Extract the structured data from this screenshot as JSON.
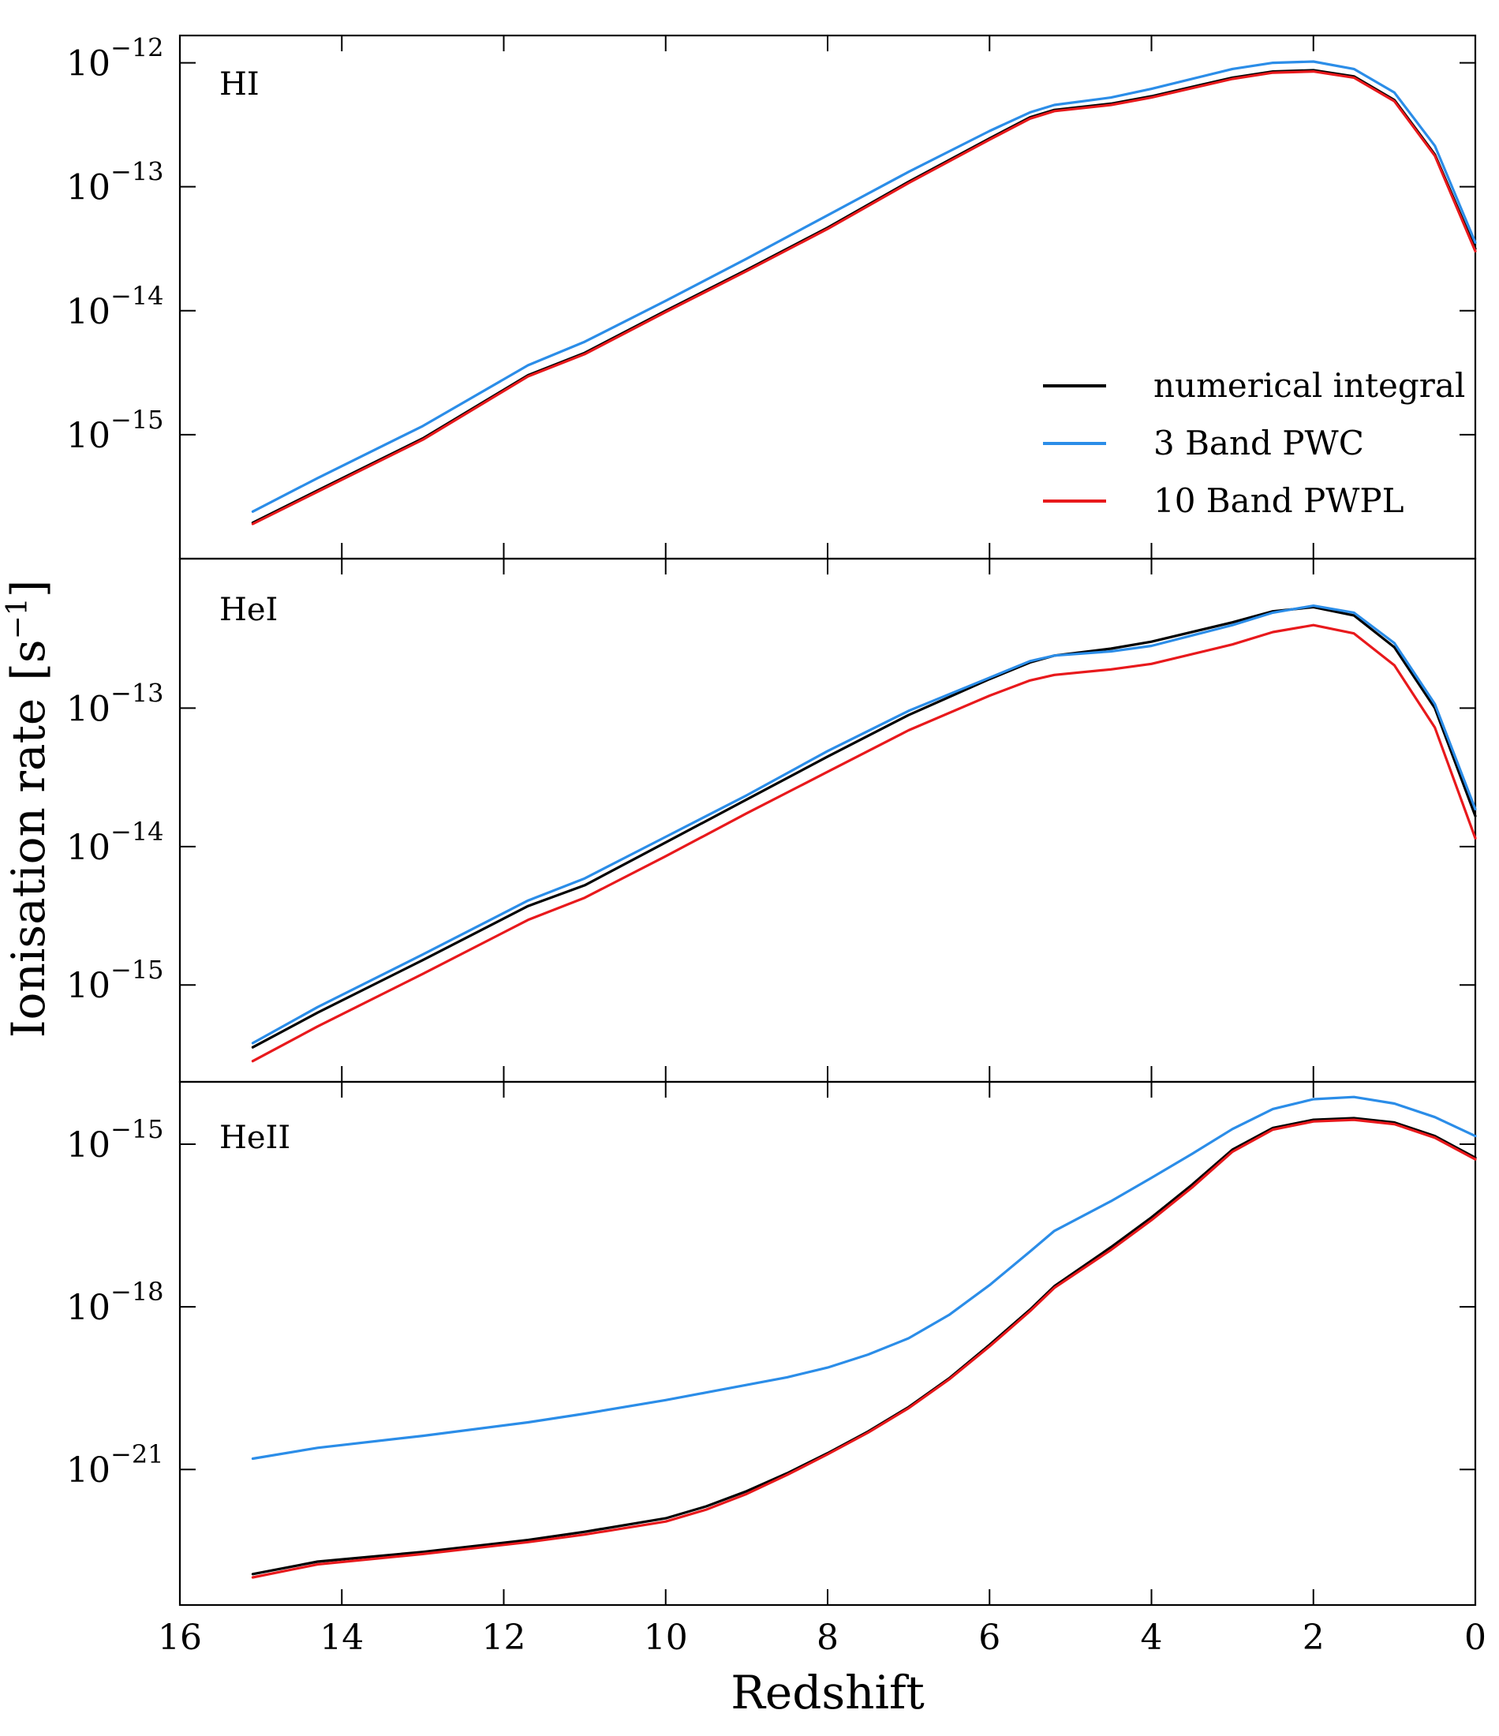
{
  "chart_data": {
    "type": "line",
    "xlabel": "Redshift",
    "ylabel_main": "Ionisation rate",
    "ylabel_unit_base": "[s",
    "ylabel_unit_exp": "−1",
    "ylabel_unit_close": "]",
    "xlim": [
      16,
      0
    ],
    "x_ticks": [
      16,
      14,
      12,
      10,
      8,
      6,
      4,
      2,
      0
    ],
    "x_tick_labels": [
      "16",
      "14",
      "12",
      "10",
      "8",
      "6",
      "4",
      "2",
      "0"
    ],
    "legend": {
      "placement": "lower-right of top panel",
      "entries": [
        {
          "label": "numerical integral",
          "color": "#000000"
        },
        {
          "label": "3 Band PWC",
          "color": "#2b8de8"
        },
        {
          "label": "10 Band PWPL",
          "color": "#e8191c"
        }
      ]
    },
    "panels": [
      {
        "label": "HI",
        "yscale": "log",
        "ylim_log10": [
          -16.0,
          -11.78
        ],
        "y_ticks_log10": [
          -12,
          -13,
          -14,
          -15
        ],
        "y_tick_base": "10",
        "y_tick_exponents": [
          "−12",
          "−13",
          "−14",
          "−15"
        ],
        "x": [
          15.1,
          14.3,
          13,
          11.7,
          11,
          10,
          9,
          8,
          7,
          6,
          5.5,
          5.2,
          4.5,
          4,
          3,
          2.5,
          2,
          1.5,
          1,
          0.5,
          0
        ],
        "series": [
          {
            "name": "numerical integral",
            "color": "#000000",
            "log10_values": [
              -15.71,
              -15.45,
              -15.03,
              -14.52,
              -14.34,
              -14.0,
              -13.67,
              -13.33,
              -12.96,
              -12.61,
              -12.44,
              -12.38,
              -12.33,
              -12.27,
              -12.12,
              -12.07,
              -12.06,
              -12.11,
              -12.3,
              -12.74,
              -13.5
            ]
          },
          {
            "name": "3 Band PWC",
            "color": "#2b8de8",
            "log10_values": [
              -15.62,
              -15.35,
              -14.93,
              -14.44,
              -14.25,
              -13.92,
              -13.58,
              -13.23,
              -12.88,
              -12.55,
              -12.4,
              -12.34,
              -12.28,
              -12.21,
              -12.05,
              -12.0,
              -11.99,
              -12.05,
              -12.24,
              -12.67,
              -13.45
            ]
          },
          {
            "name": "10 Band PWPL",
            "color": "#e8191c",
            "log10_values": [
              -15.72,
              -15.46,
              -15.04,
              -14.53,
              -14.35,
              -14.01,
              -13.68,
              -13.34,
              -12.97,
              -12.62,
              -12.45,
              -12.39,
              -12.34,
              -12.28,
              -12.13,
              -12.08,
              -12.07,
              -12.12,
              -12.31,
              -12.75,
              -13.52
            ]
          }
        ]
      },
      {
        "label": "HeI",
        "yscale": "log",
        "ylim_log10": [
          -15.7,
          -11.92
        ],
        "y_ticks_log10": [
          -13,
          -14,
          -15
        ],
        "y_tick_base": "10",
        "y_tick_exponents": [
          "−13",
          "−14",
          "−15"
        ],
        "x": [
          15.1,
          14.3,
          13,
          11.7,
          11,
          10,
          9,
          8,
          7,
          6,
          5.5,
          5.2,
          4.5,
          4,
          3,
          2.5,
          2,
          1.5,
          1,
          0.5,
          0
        ],
        "series": [
          {
            "name": "numerical integral",
            "color": "#000000",
            "log10_values": [
              -15.45,
              -15.2,
              -14.82,
              -14.43,
              -14.28,
              -13.97,
              -13.66,
              -13.35,
              -13.05,
              -12.79,
              -12.67,
              -12.62,
              -12.57,
              -12.52,
              -12.38,
              -12.3,
              -12.27,
              -12.33,
              -12.56,
              -13.0,
              -13.78
            ]
          },
          {
            "name": "3 Band PWC",
            "color": "#2b8de8",
            "log10_values": [
              -15.42,
              -15.16,
              -14.78,
              -14.39,
              -14.23,
              -13.93,
              -13.63,
              -13.31,
              -13.02,
              -12.78,
              -12.66,
              -12.62,
              -12.59,
              -12.55,
              -12.4,
              -12.31,
              -12.26,
              -12.31,
              -12.53,
              -12.97,
              -13.73
            ]
          },
          {
            "name": "10 Band PWPL",
            "color": "#e8191c",
            "log10_values": [
              -15.55,
              -15.3,
              -14.92,
              -14.53,
              -14.37,
              -14.07,
              -13.76,
              -13.46,
              -13.16,
              -12.91,
              -12.8,
              -12.76,
              -12.72,
              -12.68,
              -12.54,
              -12.45,
              -12.4,
              -12.46,
              -12.69,
              -13.14,
              -13.94
            ]
          }
        ]
      },
      {
        "label": "HeII",
        "yscale": "log",
        "ylim_log10": [
          -23.5,
          -13.85
        ],
        "y_ticks_log10": [
          -15,
          -18,
          -21
        ],
        "y_tick_base": "10",
        "y_tick_exponents": [
          "−15",
          "−18",
          "−21"
        ],
        "x": [
          15.1,
          14.3,
          13,
          11.7,
          11,
          10,
          9.5,
          9,
          8.5,
          8,
          7.5,
          7,
          6.5,
          6,
          5.5,
          5.2,
          4.5,
          4,
          3.5,
          3,
          2.5,
          2,
          1.5,
          1,
          0.5,
          0
        ],
        "series": [
          {
            "name": "numerical integral",
            "color": "#000000",
            "log10_values": [
              -22.93,
              -22.7,
              -22.52,
              -22.3,
              -22.15,
              -21.9,
              -21.68,
              -21.4,
              -21.07,
              -20.7,
              -20.3,
              -19.85,
              -19.32,
              -18.7,
              -18.05,
              -17.62,
              -16.9,
              -16.35,
              -15.75,
              -15.1,
              -14.7,
              -14.55,
              -14.52,
              -14.6,
              -14.85,
              -15.25
            ]
          },
          {
            "name": "3 Band PWC",
            "color": "#2b8de8",
            "log10_values": [
              -20.8,
              -20.6,
              -20.38,
              -20.13,
              -19.97,
              -19.72,
              -19.58,
              -19.44,
              -19.3,
              -19.12,
              -18.88,
              -18.58,
              -18.15,
              -17.6,
              -16.98,
              -16.6,
              -16.05,
              -15.62,
              -15.18,
              -14.72,
              -14.35,
              -14.17,
              -14.13,
              -14.25,
              -14.5,
              -14.85
            ]
          },
          {
            "name": "10 Band PWPL",
            "color": "#e8191c",
            "log10_values": [
              -22.99,
              -22.75,
              -22.56,
              -22.34,
              -22.2,
              -21.96,
              -21.74,
              -21.45,
              -21.1,
              -20.72,
              -20.32,
              -19.87,
              -19.34,
              -18.73,
              -18.08,
              -17.65,
              -16.95,
              -16.4,
              -15.8,
              -15.14,
              -14.73,
              -14.58,
              -14.55,
              -14.63,
              -14.88,
              -15.28
            ]
          }
        ]
      }
    ]
  }
}
